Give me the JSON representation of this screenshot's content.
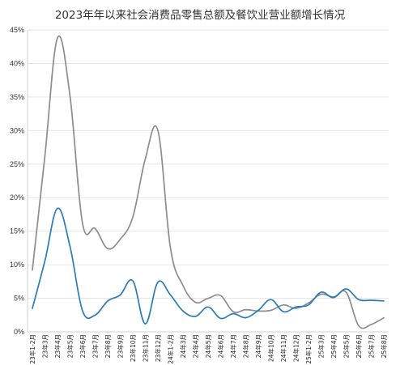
{
  "chart_data": {
    "type": "line",
    "title": "2023年年以来社会消费品零售总额及餐饮业营业额增长情况",
    "xlabel": "",
    "ylabel": "",
    "ylim": [
      0,
      45
    ],
    "yticks": [
      "0%",
      "5%",
      "10%",
      "15%",
      "20%",
      "25%",
      "30%",
      "35%",
      "40%",
      "45%"
    ],
    "grid": true,
    "legend": "none",
    "categories": [
      "23年1-2月",
      "23年3月",
      "23年4月",
      "23年5月",
      "23年6月",
      "23年7月",
      "23年8月",
      "23年9月",
      "23年10月",
      "23年11月",
      "23年12月",
      "24年1-2月",
      "24年3月",
      "24年4月",
      "24年5月",
      "24年6月",
      "24年7月",
      "24年8月",
      "24年9月",
      "24年10月",
      "24年11月",
      "24年12月",
      "25年1-2月",
      "25年3月",
      "25年4月",
      "25年5月",
      "25年6月",
      "25年7月",
      "25年8月"
    ],
    "series": [
      {
        "color": "#2b7bb9",
        "values": [
          3.5,
          10.6,
          18.4,
          12.7,
          3.1,
          2.5,
          4.6,
          5.5,
          7.6,
          1.2,
          7.4,
          5.5,
          3.1,
          2.3,
          3.7,
          2.0,
          2.7,
          2.1,
          3.2,
          4.8,
          3.0,
          3.7,
          4.0,
          5.9,
          5.1,
          6.4,
          4.8,
          4.7,
          4.6
        ]
      },
      {
        "color": "#8c8c8c",
        "values": [
          9.2,
          26.3,
          43.8,
          35.1,
          16.1,
          15.4,
          12.4,
          13.8,
          17.1,
          25.8,
          30.0,
          12.5,
          6.9,
          4.4,
          5.0,
          5.4,
          3.0,
          3.3,
          3.1,
          3.2,
          4.0,
          3.5,
          4.3,
          5.6,
          5.2,
          5.9,
          0.9,
          1.1,
          2.1
        ]
      }
    ]
  }
}
